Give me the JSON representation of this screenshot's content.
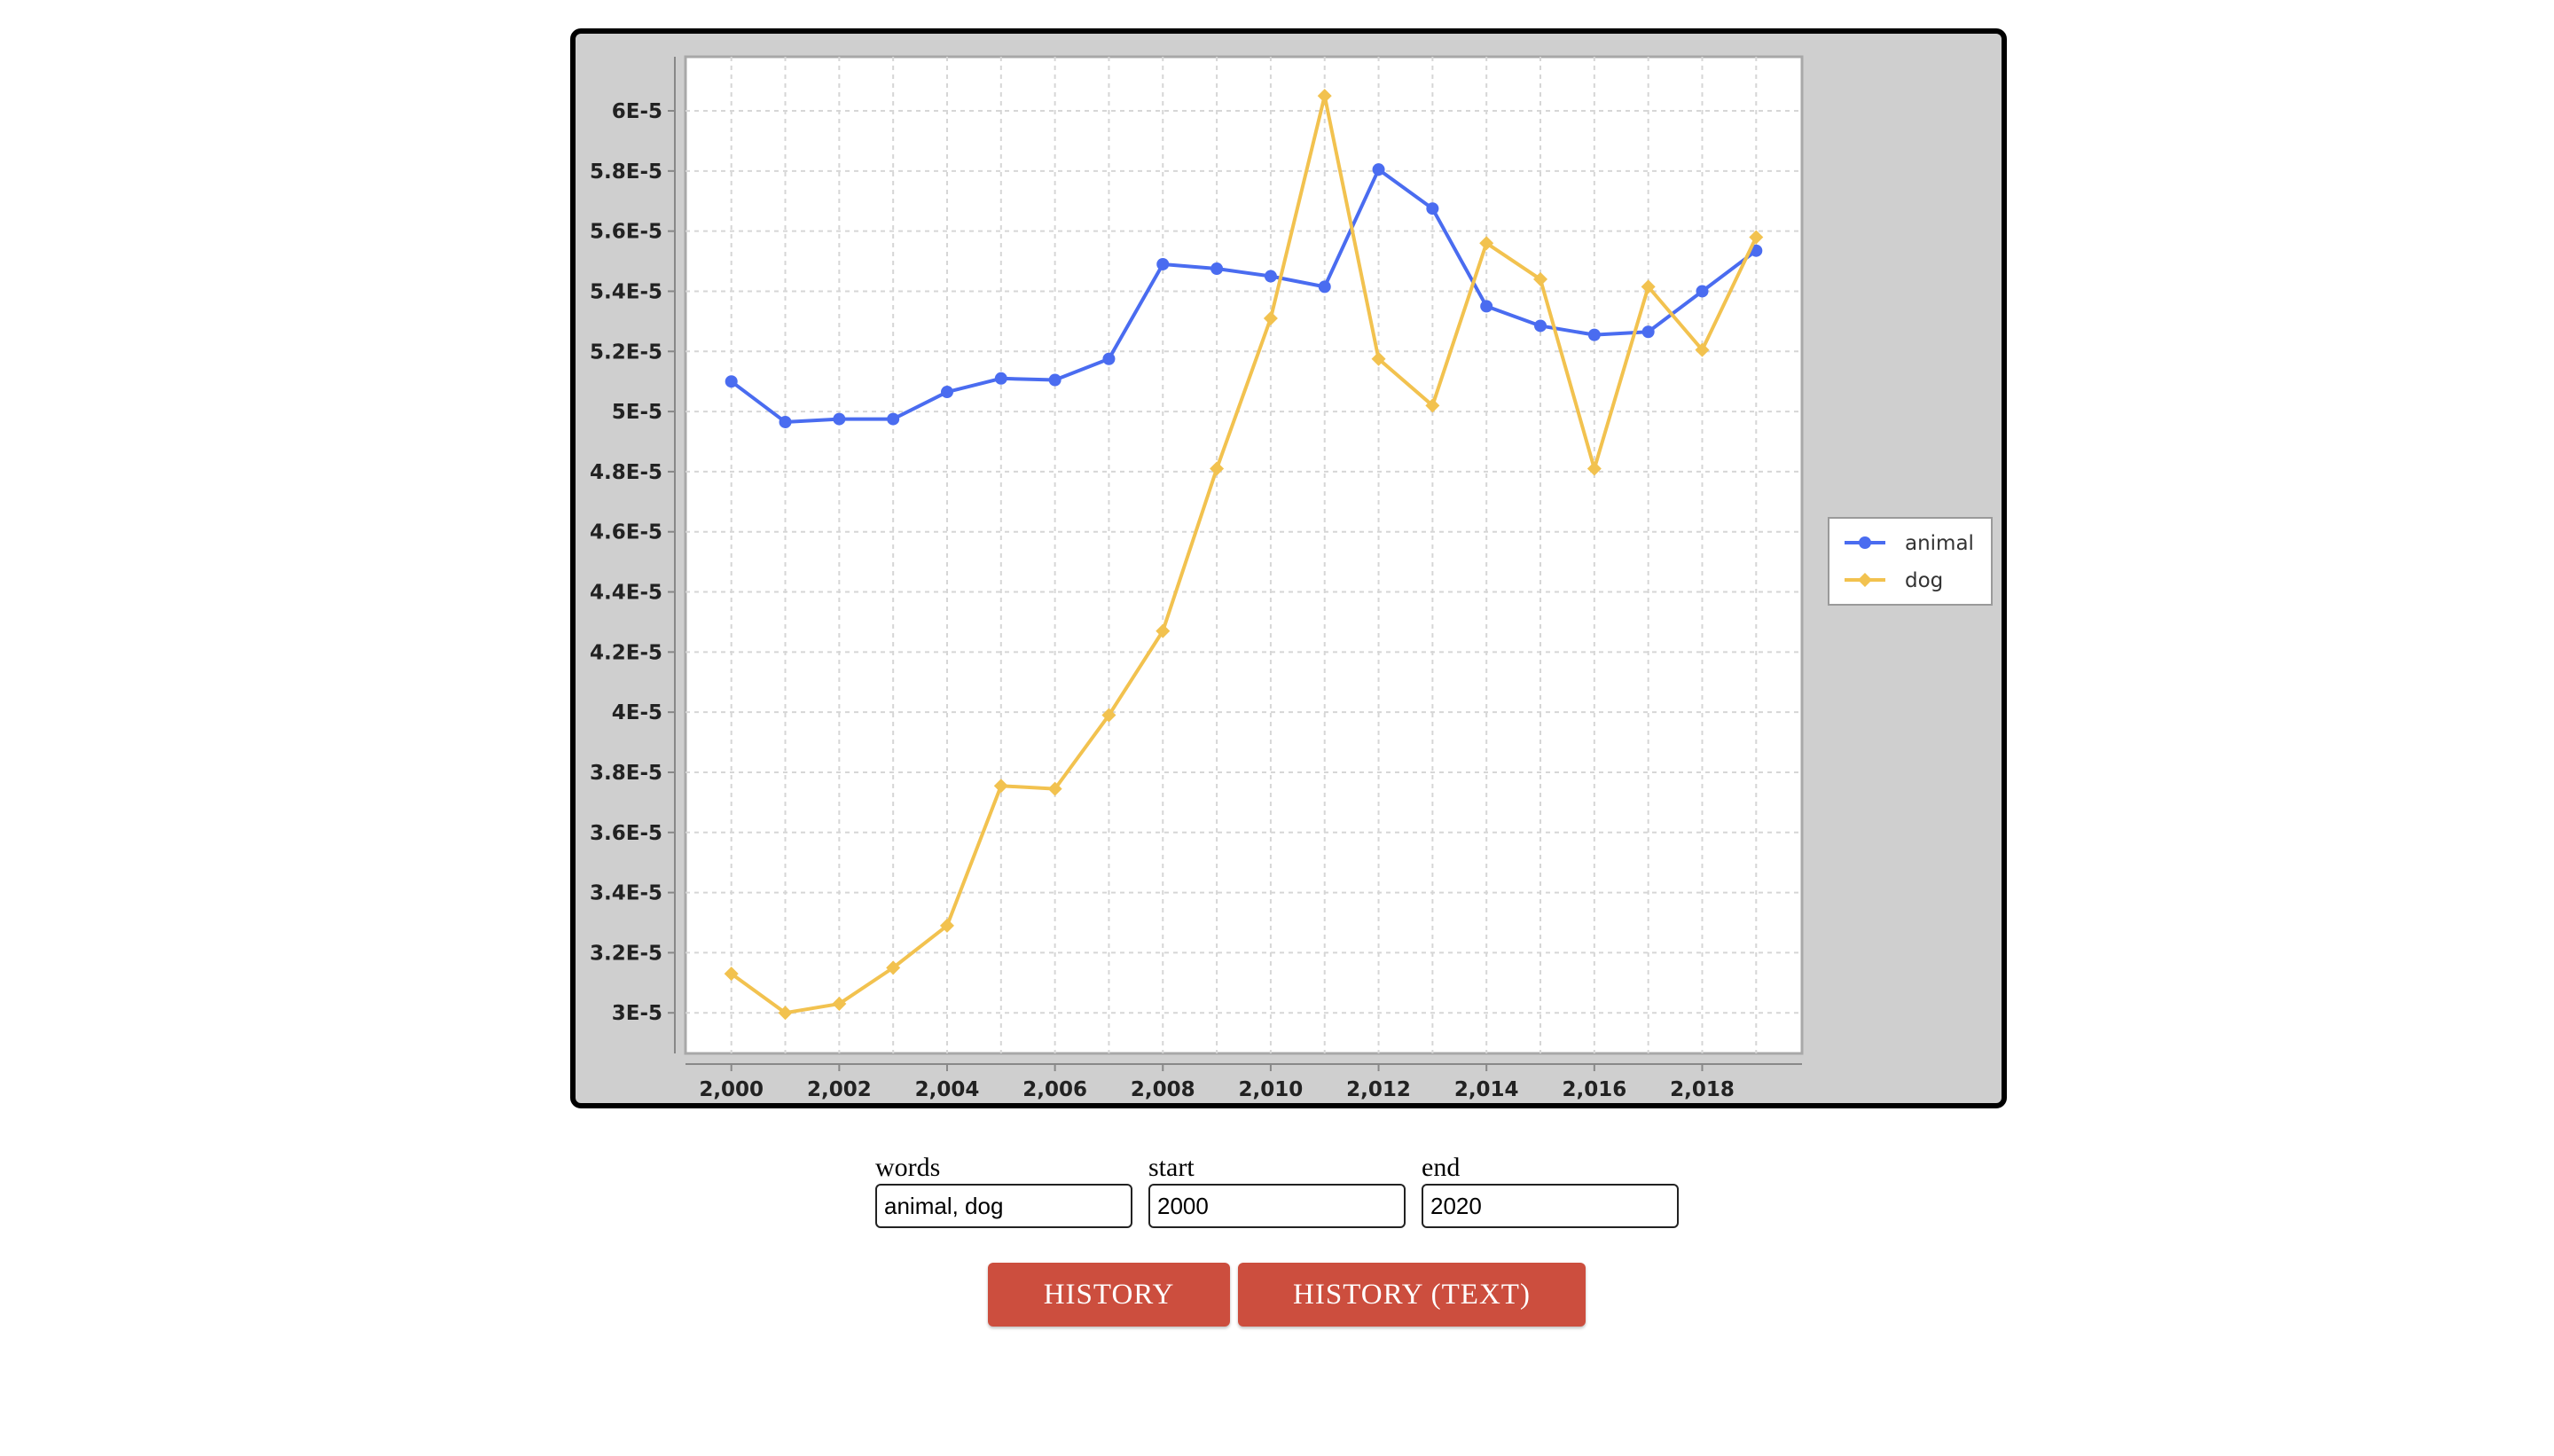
{
  "chart_data": {
    "type": "line",
    "x": [
      2000,
      2001,
      2002,
      2003,
      2004,
      2005,
      2006,
      2007,
      2008,
      2009,
      2010,
      2011,
      2012,
      2013,
      2014,
      2015,
      2016,
      2017,
      2018,
      2019
    ],
    "series": [
      {
        "name": "animal",
        "color": "#4a6cf0",
        "marker": "circle",
        "values": [
          5.1e-05,
          4.965e-05,
          4.975e-05,
          4.975e-05,
          5.065e-05,
          5.11e-05,
          5.105e-05,
          5.175e-05,
          5.49e-05,
          5.475e-05,
          5.45e-05,
          5.415e-05,
          5.805e-05,
          5.675e-05,
          5.35e-05,
          5.285e-05,
          5.255e-05,
          5.265e-05,
          5.4e-05,
          5.535e-05
        ]
      },
      {
        "name": "dog",
        "color": "#f2c24f",
        "marker": "diamond",
        "values": [
          3.13e-05,
          3e-05,
          3.03e-05,
          3.15e-05,
          3.29e-05,
          3.755e-05,
          3.745e-05,
          3.99e-05,
          4.27e-05,
          4.81e-05,
          5.31e-05,
          6.05e-05,
          5.175e-05,
          5.02e-05,
          5.56e-05,
          5.44e-05,
          4.81e-05,
          5.415e-05,
          5.205e-05,
          5.58e-05
        ]
      }
    ],
    "y_ticks": [
      "3E-5",
      "3.2E-5",
      "3.4E-5",
      "3.6E-5",
      "3.8E-5",
      "4E-5",
      "4.2E-5",
      "4.4E-5",
      "4.6E-5",
      "4.8E-5",
      "5E-5",
      "5.2E-5",
      "5.4E-5",
      "5.6E-5",
      "5.8E-5",
      "6E-5"
    ],
    "x_ticks": [
      "2,000",
      "2,002",
      "2,004",
      "2,006",
      "2,008",
      "2,010",
      "2,012",
      "2,014",
      "2,016",
      "2,018"
    ],
    "ylim": [
      2.865e-05,
      6.18e-05
    ],
    "xlim": [
      1999.15,
      2019.85
    ],
    "grid": true,
    "legend_position": "right"
  },
  "form": {
    "words_label": "words",
    "words_value": "animal, dog",
    "start_label": "start",
    "start_value": "2000",
    "end_label": "end",
    "end_value": "2020"
  },
  "buttons": {
    "history_label": "HISTORY",
    "history_text_label": "HISTORY (TEXT)"
  }
}
